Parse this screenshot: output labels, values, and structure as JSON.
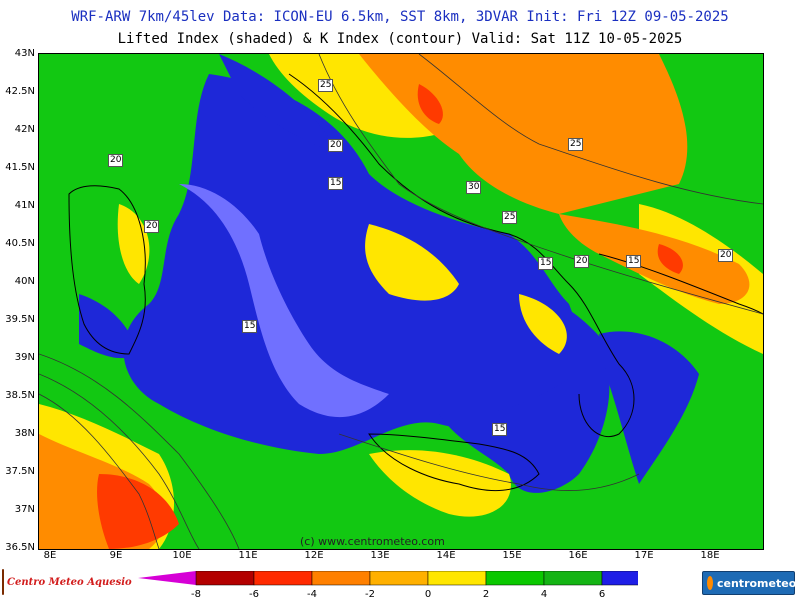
{
  "header": {
    "title_line1": "WRF-ARW 7km/45lev   Data: ICON-EU 6.5km, SST 8km, 3DVAR   Init: Fri 12Z 09-05-2025",
    "title_line2": "Lifted Index (shaded) & K Index (contour)  Valid: Sat 11Z 10-05-2025"
  },
  "map": {
    "latitude_labels": [
      "43N",
      "42.5N",
      "42N",
      "41.5N",
      "41N",
      "40.5N",
      "40N",
      "39.5N",
      "39N",
      "38.5N",
      "38N",
      "37.5N",
      "37N",
      "36.5N"
    ],
    "longitude_labels": [
      "8E",
      "9E",
      "10E",
      "11E",
      "12E",
      "13E",
      "14E",
      "15E",
      "16E",
      "17E",
      "18E"
    ],
    "contour_labels": [
      "25",
      "20",
      "20",
      "15",
      "20",
      "30",
      "25",
      "25",
      "15",
      "20",
      "15",
      "20",
      "15",
      "15"
    ],
    "copyright": "(c) www.centrometeo.com"
  },
  "colorbar": {
    "colors": [
      "#d600d6",
      "#b30000",
      "#ff2a00",
      "#ff8000",
      "#ffb000",
      "#ffe600",
      "#0ac800",
      "#14b414",
      "#1e1ee6",
      "#6464ff",
      "#9a9aff",
      "#c8c8ff"
    ],
    "tick_labels": [
      "-8",
      "-6",
      "-4",
      "-2",
      "0",
      "2",
      "4",
      "6"
    ]
  },
  "logos": {
    "left_text": "Centro Meteo Aquesio",
    "right_text": "centrometeo"
  }
}
